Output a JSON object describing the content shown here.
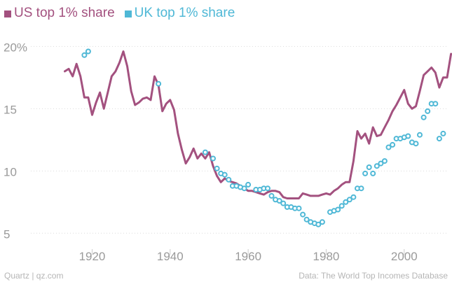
{
  "chart_data": {
    "type": "line",
    "title": "",
    "xlabel": "",
    "ylabel": "",
    "xlim": [
      1905,
      2011
    ],
    "ylim": [
      3.5,
      21.2
    ],
    "xticks": [
      1920,
      1940,
      1960,
      1980,
      2000
    ],
    "yticks": [
      {
        "value": 20,
        "label": "20%"
      },
      {
        "value": 15,
        "label": "15"
      },
      {
        "value": 10,
        "label": "10"
      },
      {
        "value": 5,
        "label": "5"
      }
    ],
    "grid": true,
    "legend_position": "top-left",
    "series": [
      {
        "name": "US top 1% share",
        "color": "#a3517f",
        "style": "line",
        "points": [
          [
            1913,
            18.0
          ],
          [
            1914,
            18.2
          ],
          [
            1915,
            17.6
          ],
          [
            1916,
            18.6
          ],
          [
            1917,
            17.6
          ],
          [
            1918,
            15.9
          ],
          [
            1919,
            15.9
          ],
          [
            1920,
            14.5
          ],
          [
            1921,
            15.5
          ],
          [
            1922,
            16.3
          ],
          [
            1923,
            15.0
          ],
          [
            1924,
            16.3
          ],
          [
            1925,
            17.6
          ],
          [
            1926,
            18.0
          ],
          [
            1927,
            18.7
          ],
          [
            1928,
            19.6
          ],
          [
            1929,
            18.4
          ],
          [
            1930,
            16.4
          ],
          [
            1931,
            15.3
          ],
          [
            1932,
            15.5
          ],
          [
            1933,
            15.8
          ],
          [
            1934,
            15.9
          ],
          [
            1935,
            15.7
          ],
          [
            1936,
            17.6
          ],
          [
            1937,
            16.9
          ],
          [
            1938,
            14.8
          ],
          [
            1939,
            15.4
          ],
          [
            1940,
            15.7
          ],
          [
            1941,
            14.9
          ],
          [
            1942,
            13.0
          ],
          [
            1943,
            11.7
          ],
          [
            1944,
            10.6
          ],
          [
            1945,
            11.1
          ],
          [
            1946,
            11.8
          ],
          [
            1947,
            11.0
          ],
          [
            1948,
            11.4
          ],
          [
            1949,
            11.0
          ],
          [
            1950,
            11.5
          ],
          [
            1951,
            10.4
          ],
          [
            1952,
            9.6
          ],
          [
            1953,
            9.1
          ],
          [
            1954,
            9.4
          ],
          [
            1955,
            9.2
          ],
          [
            1956,
            9.1
          ],
          [
            1957,
            9.0
          ],
          [
            1958,
            8.8
          ],
          [
            1959,
            8.6
          ],
          [
            1960,
            8.4
          ],
          [
            1961,
            8.4
          ],
          [
            1962,
            8.3
          ],
          [
            1963,
            8.2
          ],
          [
            1964,
            8.1
          ],
          [
            1965,
            8.3
          ],
          [
            1966,
            8.4
          ],
          [
            1967,
            8.4
          ],
          [
            1968,
            8.3
          ],
          [
            1969,
            7.9
          ],
          [
            1970,
            7.8
          ],
          [
            1971,
            7.8
          ],
          [
            1972,
            7.8
          ],
          [
            1973,
            7.8
          ],
          [
            1974,
            8.2
          ],
          [
            1975,
            8.1
          ],
          [
            1976,
            8.0
          ],
          [
            1977,
            8.0
          ],
          [
            1978,
            8.0
          ],
          [
            1979,
            8.1
          ],
          [
            1980,
            8.2
          ],
          [
            1981,
            8.1
          ],
          [
            1982,
            8.4
          ],
          [
            1983,
            8.6
          ],
          [
            1984,
            8.9
          ],
          [
            1985,
            9.1
          ],
          [
            1986,
            9.1
          ],
          [
            1987,
            10.8
          ],
          [
            1988,
            13.2
          ],
          [
            1989,
            12.6
          ],
          [
            1990,
            13.0
          ],
          [
            1991,
            12.2
          ],
          [
            1992,
            13.5
          ],
          [
            1993,
            12.8
          ],
          [
            1994,
            12.9
          ],
          [
            1995,
            13.5
          ],
          [
            1996,
            14.1
          ],
          [
            1997,
            14.8
          ],
          [
            1998,
            15.3
          ],
          [
            1999,
            15.9
          ],
          [
            2000,
            16.5
          ],
          [
            2001,
            15.4
          ],
          [
            2002,
            15.0
          ],
          [
            2003,
            15.2
          ],
          [
            2004,
            16.4
          ],
          [
            2005,
            17.7
          ],
          [
            2006,
            18.0
          ],
          [
            2007,
            18.3
          ],
          [
            2008,
            17.9
          ],
          [
            2009,
            16.7
          ],
          [
            2010,
            17.5
          ],
          [
            2011,
            17.5
          ],
          [
            2012,
            19.4
          ]
        ]
      },
      {
        "name": "UK top 1% share",
        "color": "#4fb8d6",
        "style": "markers",
        "points": [
          [
            1918,
            19.3
          ],
          [
            1919,
            19.6
          ],
          [
            1937,
            17.0
          ],
          [
            1949,
            11.5
          ],
          [
            1951,
            11.0
          ],
          [
            1952,
            10.2
          ],
          [
            1953,
            9.8
          ],
          [
            1954,
            9.7
          ],
          [
            1955,
            9.3
          ],
          [
            1956,
            8.8
          ],
          [
            1957,
            8.8
          ],
          [
            1958,
            8.7
          ],
          [
            1959,
            8.6
          ],
          [
            1960,
            8.9
          ],
          [
            1962,
            8.5
          ],
          [
            1963,
            8.5
          ],
          [
            1964,
            8.6
          ],
          [
            1965,
            8.6
          ],
          [
            1966,
            8.0
          ],
          [
            1967,
            7.7
          ],
          [
            1968,
            7.6
          ],
          [
            1969,
            7.4
          ],
          [
            1970,
            7.1
          ],
          [
            1971,
            7.1
          ],
          [
            1972,
            7.0
          ],
          [
            1973,
            7.0
          ],
          [
            1974,
            6.5
          ],
          [
            1975,
            6.1
          ],
          [
            1976,
            5.9
          ],
          [
            1977,
            5.8
          ],
          [
            1978,
            5.7
          ],
          [
            1979,
            5.9
          ],
          [
            1981,
            6.7
          ],
          [
            1982,
            6.8
          ],
          [
            1983,
            6.9
          ],
          [
            1984,
            7.2
          ],
          [
            1985,
            7.5
          ],
          [
            1986,
            7.7
          ],
          [
            1987,
            7.9
          ],
          [
            1988,
            8.6
          ],
          [
            1989,
            8.6
          ],
          [
            1990,
            9.8
          ],
          [
            1991,
            10.3
          ],
          [
            1992,
            9.8
          ],
          [
            1993,
            10.4
          ],
          [
            1994,
            10.6
          ],
          [
            1995,
            10.8
          ],
          [
            1996,
            11.9
          ],
          [
            1997,
            12.1
          ],
          [
            1998,
            12.6
          ],
          [
            1999,
            12.6
          ],
          [
            2000,
            12.7
          ],
          [
            2001,
            12.8
          ],
          [
            2002,
            12.3
          ],
          [
            2003,
            12.2
          ],
          [
            2004,
            12.9
          ],
          [
            2005,
            14.3
          ],
          [
            2006,
            14.8
          ],
          [
            2007,
            15.4
          ],
          [
            2008,
            15.4
          ],
          [
            2009,
            12.6
          ],
          [
            2010,
            13.0
          ]
        ]
      }
    ]
  },
  "legend": [
    {
      "label": "US top 1% share",
      "color": "#a3517f"
    },
    {
      "label": "UK top 1% share",
      "color": "#4fb8d6"
    }
  ],
  "footer": {
    "left": "Quartz | qz.com",
    "right": "Data: The World Top Incomes Database"
  }
}
